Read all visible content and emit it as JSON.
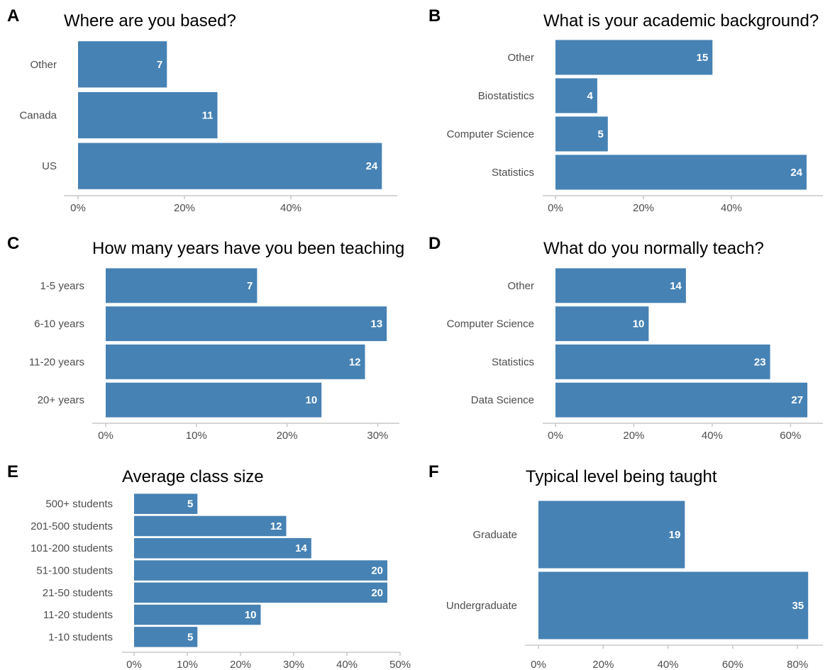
{
  "chart_data": [
    {
      "panel": "A",
      "type": "bar",
      "orientation": "horizontal",
      "title": "Where are you based?",
      "categories": [
        "US",
        "Canada",
        "Other"
      ],
      "counts": [
        24,
        11,
        7
      ],
      "values": [
        57.1,
        26.2,
        16.7
      ],
      "unit": "percent",
      "xlim": [
        0,
        60
      ],
      "xticks": [
        0,
        20,
        40
      ],
      "xtick_labels": [
        "0%",
        "20%",
        "40%"
      ],
      "bar_color": "#4682b4",
      "grid": false
    },
    {
      "panel": "B",
      "type": "bar",
      "orientation": "horizontal",
      "title": "What is your academic background?",
      "categories": [
        "Statistics",
        "Computer Science",
        "Biostatistics",
        "Other"
      ],
      "counts": [
        24,
        5,
        4,
        15
      ],
      "values": [
        57.1,
        11.9,
        9.5,
        35.7
      ],
      "unit": "percent",
      "xlim": [
        0,
        60
      ],
      "xticks": [
        0,
        20,
        40
      ],
      "xtick_labels": [
        "0%",
        "20%",
        "40%"
      ],
      "bar_color": "#4682b4",
      "grid": false
    },
    {
      "panel": "C",
      "type": "bar",
      "orientation": "horizontal",
      "title": "How many years have you been teaching",
      "categories": [
        "20+ years",
        "11-20 years",
        "6-10 years",
        "1-5 years"
      ],
      "counts": [
        10,
        12,
        13,
        7
      ],
      "values": [
        23.8,
        28.6,
        31.0,
        16.7
      ],
      "unit": "percent",
      "xlim": [
        0,
        32
      ],
      "xticks": [
        0,
        10,
        20,
        30
      ],
      "xtick_labels": [
        "0%",
        "10%",
        "20%",
        "30%"
      ],
      "bar_color": "#4682b4",
      "grid": false
    },
    {
      "panel": "D",
      "type": "bar",
      "orientation": "horizontal",
      "title": "What do you normally teach?",
      "categories": [
        "Data Science",
        "Statistics",
        "Computer Science",
        "Other"
      ],
      "counts": [
        27,
        23,
        10,
        14
      ],
      "values": [
        64.3,
        54.8,
        23.8,
        33.3
      ],
      "unit": "percent",
      "xlim": [
        0,
        67
      ],
      "xticks": [
        0,
        20,
        40,
        60
      ],
      "xtick_labels": [
        "0%",
        "20%",
        "40%",
        "60%"
      ],
      "bar_color": "#4682b4",
      "grid": false
    },
    {
      "panel": "E",
      "type": "bar",
      "orientation": "horizontal",
      "title": "Average class size",
      "categories": [
        "1-10 students",
        "11-20 students",
        "21-50 students",
        "51-100 students",
        "101-200 students",
        "201-500 students",
        "500+ students"
      ],
      "counts": [
        5,
        10,
        20,
        20,
        14,
        12,
        5
      ],
      "values": [
        11.9,
        23.8,
        47.6,
        47.6,
        33.3,
        28.6,
        11.9
      ],
      "unit": "percent",
      "xlim": [
        0,
        50
      ],
      "xticks": [
        0,
        10,
        20,
        30,
        40,
        50
      ],
      "xtick_labels": [
        "0%",
        "10%",
        "20%",
        "30%",
        "40%",
        "50%"
      ],
      "bar_color": "#4682b4",
      "grid": false
    },
    {
      "panel": "F",
      "type": "bar",
      "orientation": "horizontal",
      "title": "Typical level being taught",
      "categories": [
        "Undergraduate",
        "Graduate"
      ],
      "counts": [
        35,
        19
      ],
      "values": [
        83.3,
        45.2
      ],
      "unit": "percent",
      "xlim": [
        0,
        85
      ],
      "xticks": [
        0,
        20,
        40,
        60,
        80
      ],
      "xtick_labels": [
        "0%",
        "20%",
        "40%",
        "60%",
        "80%"
      ],
      "bar_color": "#4682b4",
      "grid": false
    }
  ]
}
